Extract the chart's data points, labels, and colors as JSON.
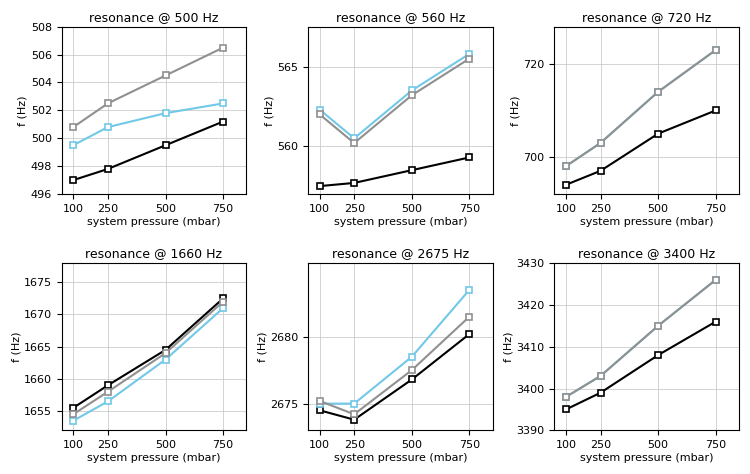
{
  "subplots": [
    {
      "title": "resonance @ 500 Hz",
      "ylabel": "f (Hz)",
      "xlabel": "system pressure (mbar)",
      "xticks": [
        100,
        250,
        500,
        750
      ],
      "xlim": [
        50,
        850
      ],
      "ylim": [
        496,
        508
      ],
      "yticks": [],
      "series": [
        {
          "color": "#000000",
          "data": [
            [
              100,
              497.0
            ],
            [
              250,
              497.8
            ],
            [
              500,
              499.5
            ],
            [
              750,
              501.2
            ]
          ]
        },
        {
          "color": "#72C8E8",
          "data": [
            [
              100,
              499.5
            ],
            [
              250,
              500.8
            ],
            [
              500,
              501.8
            ],
            [
              750,
              502.5
            ]
          ]
        },
        {
          "color": "#909090",
          "data": [
            [
              100,
              500.8
            ],
            [
              250,
              502.5
            ],
            [
              500,
              504.5
            ],
            [
              750,
              506.5
            ]
          ]
        }
      ],
      "row": 0,
      "col": 0
    },
    {
      "title": "resonance @ 560 Hz",
      "ylabel": "f (Hz)",
      "xlabel": "system pressure (mbar)",
      "xticks": [
        100,
        250,
        500,
        750
      ],
      "xlim": [
        50,
        850
      ],
      "ylim": [
        557.0,
        567.5
      ],
      "yticks": [
        560,
        565
      ],
      "series": [
        {
          "color": "#000000",
          "data": [
            [
              100,
              557.5
            ],
            [
              250,
              557.7
            ],
            [
              500,
              558.5
            ],
            [
              750,
              559.3
            ]
          ]
        },
        {
          "color": "#72C8E8",
          "data": [
            [
              100,
              562.3
            ],
            [
              250,
              560.5
            ],
            [
              500,
              563.5
            ],
            [
              750,
              565.8
            ]
          ]
        },
        {
          "color": "#909090",
          "data": [
            [
              100,
              562.0
            ],
            [
              250,
              560.2
            ],
            [
              500,
              563.2
            ],
            [
              750,
              565.5
            ]
          ]
        }
      ],
      "row": 0,
      "col": 1
    },
    {
      "title": "resonance @ 720 Hz",
      "ylabel": "f (Hz)",
      "xlabel": "system pressure (mbar)",
      "xticks": [
        100,
        250,
        500,
        750
      ],
      "xlim": [
        50,
        850
      ],
      "ylim": [
        692,
        728
      ],
      "yticks": [
        700,
        720
      ],
      "series": [
        {
          "color": "#000000",
          "data": [
            [
              100,
              694
            ],
            [
              250,
              697
            ],
            [
              500,
              705
            ],
            [
              750,
              710
            ]
          ]
        },
        {
          "color": "#72C8E8",
          "data": [
            [
              100,
              698
            ],
            [
              250,
              703
            ],
            [
              500,
              714
            ],
            [
              750,
              723
            ]
          ]
        },
        {
          "color": "#909090",
          "data": [
            [
              100,
              698
            ],
            [
              250,
              703
            ],
            [
              500,
              714
            ],
            [
              750,
              723
            ]
          ]
        }
      ],
      "row": 0,
      "col": 2
    },
    {
      "title": "resonance @ 1660 Hz",
      "ylabel": "f (Hz)",
      "xlabel": "system pressure (mbar)",
      "xticks": [
        100,
        250,
        500,
        750
      ],
      "xlim": [
        50,
        850
      ],
      "ylim": [
        1652,
        1678
      ],
      "yticks": [],
      "series": [
        {
          "color": "#000000",
          "data": [
            [
              100,
              1655.5
            ],
            [
              250,
              1659.0
            ],
            [
              500,
              1664.5
            ],
            [
              750,
              1672.5
            ]
          ]
        },
        {
          "color": "#72C8E8",
          "data": [
            [
              100,
              1653.5
            ],
            [
              250,
              1656.5
            ],
            [
              500,
              1663.0
            ],
            [
              750,
              1671.0
            ]
          ]
        },
        {
          "color": "#909090",
          "data": [
            [
              100,
              1654.5
            ],
            [
              250,
              1658.0
            ],
            [
              500,
              1664.0
            ],
            [
              750,
              1672.0
            ]
          ]
        }
      ],
      "row": 1,
      "col": 0
    },
    {
      "title": "resonance @ 2675 Hz",
      "ylabel": "f (Hz)",
      "xlabel": "system pressure (mbar)",
      "xticks": [
        100,
        250,
        500,
        750
      ],
      "xlim": [
        50,
        850
      ],
      "ylim": [
        2673.0,
        2685.5
      ],
      "yticks": [
        2675,
        2680
      ],
      "series": [
        {
          "color": "#000000",
          "data": [
            [
              100,
              2674.5
            ],
            [
              250,
              2673.8
            ],
            [
              500,
              2676.8
            ],
            [
              750,
              2680.2
            ]
          ]
        },
        {
          "color": "#72C8E8",
          "data": [
            [
              100,
              2675.0
            ],
            [
              250,
              2675.0
            ],
            [
              500,
              2678.5
            ],
            [
              750,
              2683.5
            ]
          ]
        },
        {
          "color": "#909090",
          "data": [
            [
              100,
              2675.2
            ],
            [
              250,
              2674.2
            ],
            [
              500,
              2677.5
            ],
            [
              750,
              2681.5
            ]
          ]
        }
      ],
      "row": 1,
      "col": 1
    },
    {
      "title": "resonance @ 3400 Hz",
      "ylabel": "f (Hz)",
      "xlabel": "system pressure (mbar)",
      "xticks": [
        100,
        250,
        500,
        750
      ],
      "xlim": [
        50,
        850
      ],
      "ylim": [
        3390,
        3430
      ],
      "yticks": [],
      "series": [
        {
          "color": "#000000",
          "data": [
            [
              100,
              3395
            ],
            [
              250,
              3399
            ],
            [
              500,
              3408
            ],
            [
              750,
              3416
            ]
          ]
        },
        {
          "color": "#72C8E8",
          "data": [
            [
              100,
              3398
            ],
            [
              250,
              3403
            ],
            [
              500,
              3415
            ],
            [
              750,
              3426
            ]
          ]
        },
        {
          "color": "#909090",
          "data": [
            [
              100,
              3398
            ],
            [
              250,
              3403
            ],
            [
              500,
              3415
            ],
            [
              750,
              3426
            ]
          ]
        }
      ],
      "row": 1,
      "col": 2
    }
  ],
  "marker": "s",
  "markersize": 5,
  "linewidth": 1.5,
  "grid_color": "#cccccc",
  "bg_color": "#ffffff",
  "figure_bg": "#ffffff",
  "title_fontsize": 9,
  "label_fontsize": 8,
  "tick_fontsize": 8
}
